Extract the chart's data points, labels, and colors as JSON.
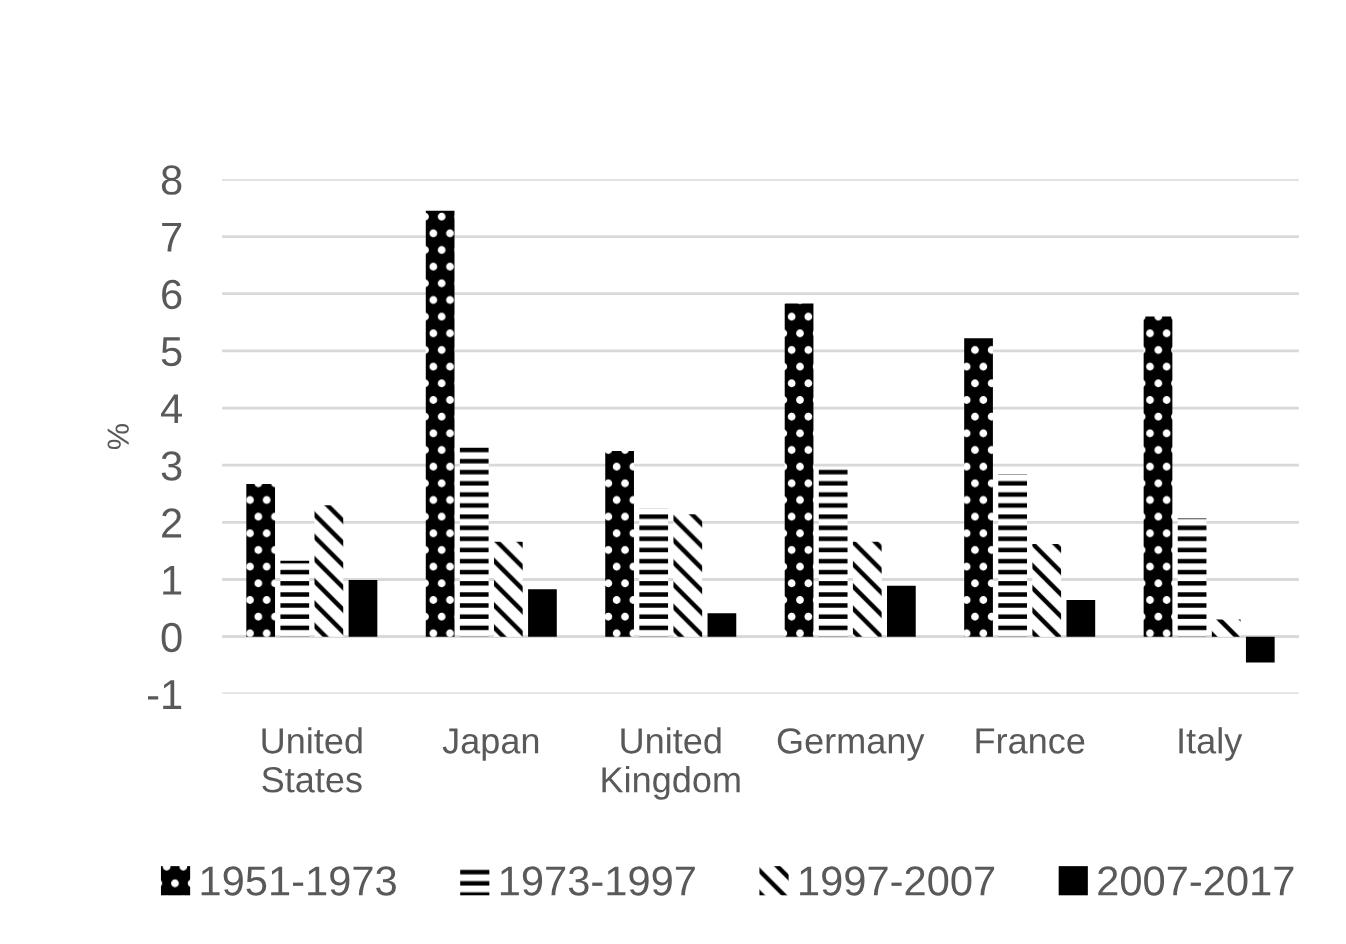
{
  "chart_data": {
    "type": "bar",
    "ylabel": "%",
    "categories": [
      "United\nStates",
      "Japan",
      "United\nKingdom",
      "Germany",
      "France",
      "Italy"
    ],
    "series": [
      {
        "name": "1951-1973",
        "color": "#000000",
        "values": [
          2.67,
          7.45,
          3.25,
          5.83,
          5.22,
          5.6
        ]
      },
      {
        "name": "1973-1997",
        "color": "#000000",
        "values": [
          1.33,
          3.39,
          2.25,
          2.96,
          2.84,
          2.07
        ]
      },
      {
        "name": "1997-2007",
        "color": "#000000",
        "values": [
          2.3,
          1.66,
          2.14,
          1.66,
          1.62,
          0.3
        ]
      },
      {
        "name": "2007-2017",
        "color": "#000000",
        "values": [
          0.99,
          0.83,
          0.41,
          0.89,
          0.64,
          -0.45
        ]
      }
    ],
    "ylim": [
      -1,
      8
    ],
    "yticks": [
      -1,
      0,
      1,
      2,
      3,
      4,
      5,
      6,
      7,
      8
    ],
    "grid": "y",
    "legend": "bottom"
  }
}
